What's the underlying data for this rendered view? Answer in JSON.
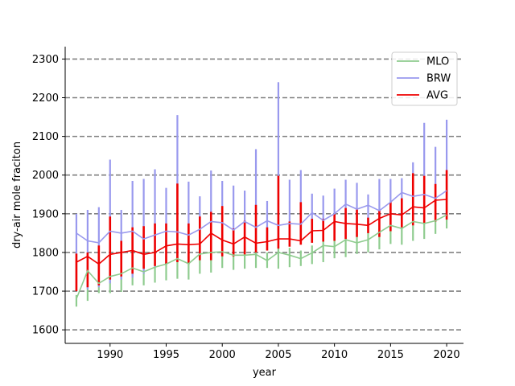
{
  "chart_data": {
    "type": "line",
    "xlabel": "year",
    "ylabel": "dry-air mole fraciton",
    "xlim": [
      1986.0,
      2021.5
    ],
    "ylim": [
      1565,
      2332
    ],
    "xticks": [
      1990,
      1995,
      2000,
      2005,
      2010,
      2015,
      2020
    ],
    "yticks": [
      1600,
      1700,
      1800,
      1900,
      2000,
      2100,
      2200,
      2300
    ],
    "grid": "horizontal dashed",
    "legend_position": "top-right",
    "x": [
      1987,
      1988,
      1989,
      1990,
      1991,
      1992,
      1993,
      1994,
      1995,
      1996,
      1997,
      1998,
      1999,
      2000,
      2001,
      2002,
      2003,
      2004,
      2005,
      2006,
      2007,
      2008,
      2009,
      2010,
      2011,
      2012,
      2013,
      2014,
      2015,
      2016,
      2017,
      2018,
      2019,
      2020
    ],
    "series": [
      {
        "name": "MLO",
        "color": "#8fcc8f",
        "values": [
          1680,
          1753,
          1720,
          1738,
          1745,
          1760,
          1750,
          1762,
          1770,
          1784,
          1771,
          1796,
          1800,
          1802,
          1793,
          1793,
          1795,
          1779,
          1800,
          1793,
          1784,
          1799,
          1818,
          1815,
          1833,
          1825,
          1833,
          1852,
          1870,
          1862,
          1880,
          1875,
          1882,
          1897
        ],
        "err_low": [
          1660,
          1675,
          1695,
          1695,
          1698,
          1715,
          1715,
          1722,
          1728,
          1732,
          1730,
          1745,
          1748,
          1760,
          1755,
          1758,
          1760,
          1760,
          1758,
          1762,
          1765,
          1770,
          1775,
          1785,
          1788,
          1796,
          1800,
          1808,
          1822,
          1820,
          1830,
          1835,
          1848,
          1862
        ],
        "err_high": [
          1690,
          1768,
          1740,
          1760,
          1766,
          1778,
          1770,
          1782,
          1790,
          1805,
          1790,
          1812,
          1815,
          1818,
          1812,
          1813,
          1815,
          1800,
          1817,
          1812,
          1805,
          1818,
          1835,
          1835,
          1852,
          1845,
          1852,
          1870,
          1892,
          1882,
          1900,
          1895,
          1902,
          1917
        ]
      },
      {
        "name": "BRW",
        "color": "#9999ee",
        "values": [
          1850,
          1830,
          1825,
          1855,
          1850,
          1855,
          1835,
          1845,
          1855,
          1853,
          1845,
          1860,
          1880,
          1877,
          1858,
          1880,
          1865,
          1882,
          1870,
          1875,
          1873,
          1903,
          1883,
          1900,
          1925,
          1912,
          1922,
          1908,
          1930,
          1955,
          1945,
          1950,
          1940,
          1960
        ],
        "err_low": [
          1700,
          1705,
          1710,
          1720,
          1730,
          1735,
          1745,
          1760,
          1770,
          1780,
          1785,
          1790,
          1800,
          1805,
          1810,
          1815,
          1820,
          1825,
          1830,
          1835,
          1838,
          1840,
          1845,
          1850,
          1855,
          1860,
          1865,
          1870,
          1880,
          1890,
          1900,
          1910,
          1920,
          1930
        ],
        "err_high": [
          1900,
          1910,
          1917,
          2040,
          1910,
          1985,
          1990,
          2015,
          1967,
          2155,
          1983,
          1945,
          2012,
          1985,
          1973,
          1960,
          2067,
          1933,
          2240,
          1988,
          2013,
          1952,
          1947,
          1965,
          1988,
          1980,
          1950,
          1990,
          1990,
          1992,
          2033,
          2135,
          2073,
          2143
        ]
      },
      {
        "name": "AVG",
        "color": "#ee0000",
        "values": [
          1775,
          1790,
          1770,
          1795,
          1800,
          1805,
          1795,
          1800,
          1817,
          1822,
          1820,
          1822,
          1850,
          1832,
          1822,
          1840,
          1824,
          1828,
          1835,
          1835,
          1830,
          1856,
          1857,
          1880,
          1875,
          1873,
          1870,
          1888,
          1900,
          1897,
          1918,
          1915,
          1935,
          1937
        ],
        "err_low": [
          1700,
          1710,
          1715,
          1730,
          1738,
          1745,
          1758,
          1765,
          1770,
          1775,
          1770,
          1780,
          1780,
          1790,
          1790,
          1795,
          1800,
          1805,
          1810,
          1815,
          1820,
          1825,
          1828,
          1830,
          1835,
          1840,
          1850,
          1840,
          1855,
          1865,
          1870,
          1875,
          1880,
          1885
        ],
        "err_high": [
          1797,
          1800,
          1818,
          1893,
          1830,
          1865,
          1868,
          1875,
          1875,
          1978,
          1875,
          1893,
          1905,
          1920,
          1862,
          1882,
          1923,
          1865,
          1998,
          1880,
          1930,
          1887,
          1887,
          1900,
          1915,
          1912,
          1890,
          1910,
          1930,
          1940,
          2005,
          1998,
          1977,
          2013
        ]
      }
    ]
  }
}
